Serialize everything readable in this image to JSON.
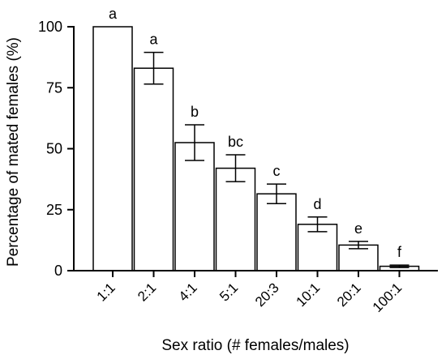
{
  "chart_data": {
    "type": "bar",
    "xlabel": "Sex ratio (# females/males)",
    "ylabel": "Percentage of mated females (%)",
    "ylim": [
      0,
      100
    ],
    "yticks": [
      0,
      25,
      50,
      75,
      100
    ],
    "categories": [
      "1:1",
      "2:1",
      "4:1",
      "5:1",
      "20:3",
      "10:1",
      "20:1",
      "100:1"
    ],
    "values": [
      100,
      83,
      52.5,
      42,
      31.5,
      19,
      10.5,
      1.8
    ],
    "errors": [
      0,
      6.5,
      7.3,
      5.5,
      4.0,
      3.0,
      1.5,
      0.5
    ],
    "significance_letters": [
      "a",
      "a",
      "b",
      "bc",
      "c",
      "d",
      "e",
      "f"
    ],
    "grid": false,
    "bar_fill": "#ffffff",
    "bar_stroke": "#000000"
  }
}
